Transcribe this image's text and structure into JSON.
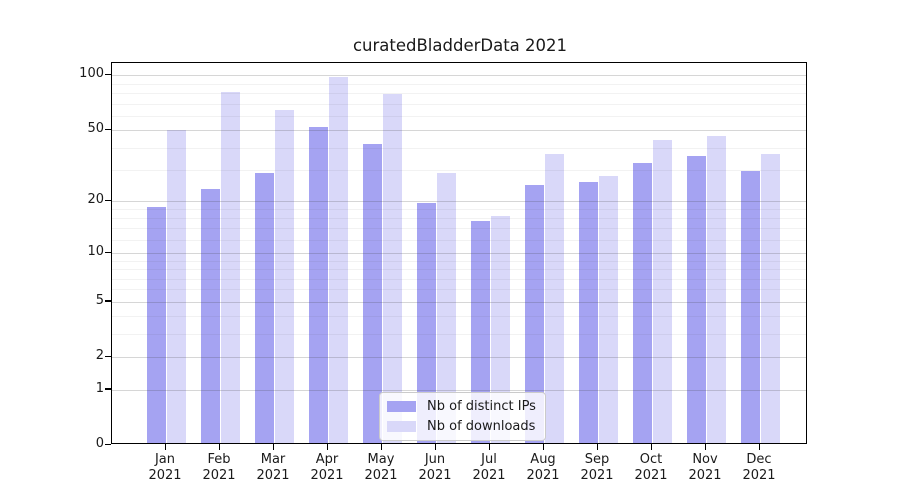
{
  "chart_data": {
    "type": "bar",
    "title": "curatedBladderData 2021",
    "categories": [
      "Jan",
      "Feb",
      "Mar",
      "Apr",
      "May",
      "Jun",
      "Jul",
      "Aug",
      "Sep",
      "Oct",
      "Nov",
      "Dec"
    ],
    "x_year_label": "2021",
    "series": [
      {
        "name": "Nb of distinct IPs",
        "color": "#a5a3f2",
        "values": [
          18,
          23,
          28,
          51,
          41,
          19,
          15,
          24,
          25,
          32,
          35,
          29
        ]
      },
      {
        "name": "Nb of downloads",
        "color": "#d9d8f9",
        "values": [
          49,
          79,
          63,
          95,
          77,
          28,
          16,
          36,
          27,
          43,
          45,
          36
        ]
      }
    ],
    "yscale": "log10(1+y)",
    "ylim": [
      0,
      117
    ],
    "yticks": [
      0,
      1,
      2,
      5,
      10,
      20,
      50,
      100
    ],
    "minor_yticks": [
      3,
      4,
      6,
      7,
      8,
      9,
      12,
      14,
      16,
      18,
      30,
      40,
      60,
      70,
      80,
      90
    ],
    "grid": true,
    "legend": {
      "position": "lower center"
    }
  },
  "colors": {
    "background": "#ffffff",
    "axis": "#000000",
    "grid_major": "#d2d2d2",
    "grid_minor": "#ededed",
    "text": "#1a1a1a"
  }
}
